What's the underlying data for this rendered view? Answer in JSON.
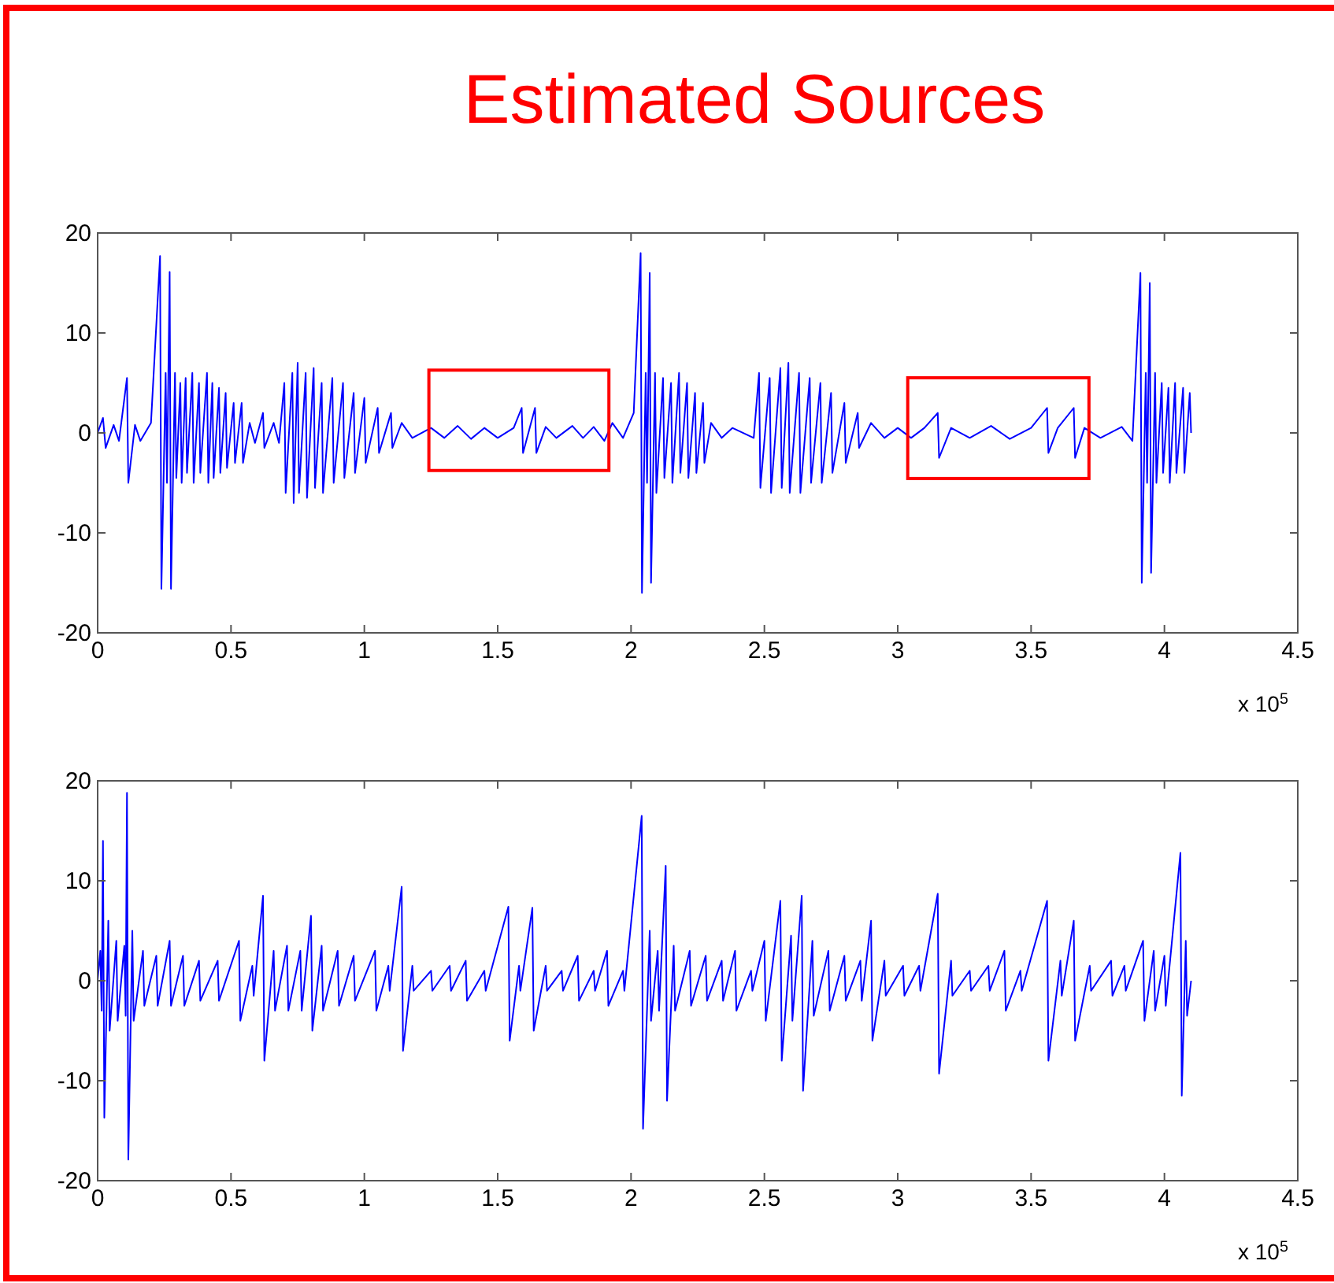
{
  "chart_data": [
    {
      "type": "line",
      "title": "Estimated Sources",
      "annotations": [
        "x 10$^{5}$"
      ],
      "xlim": [
        0,
        4.5
      ],
      "ylim": [
        -20,
        20
      ],
      "xticks": [
        0,
        0.5,
        1,
        1.5,
        2,
        2.5,
        3,
        3.5,
        4,
        4.5
      ],
      "yticks": [
        -20,
        -10,
        0,
        10,
        20
      ],
      "grid": false,
      "series": [
        {
          "color": "#0000ff",
          "x": [
            0,
            0.02,
            0.03,
            0.06,
            0.08,
            0.11,
            0.115,
            0.14,
            0.16,
            0.2,
            0.234,
            0.239,
            0.255,
            0.26,
            0.27,
            0.275,
            0.29,
            0.295,
            0.31,
            0.315,
            0.33,
            0.335,
            0.355,
            0.36,
            0.38,
            0.385,
            0.41,
            0.415,
            0.43,
            0.435,
            0.455,
            0.46,
            0.48,
            0.485,
            0.51,
            0.515,
            0.54,
            0.545,
            0.57,
            0.59,
            0.62,
            0.625,
            0.66,
            0.68,
            0.7,
            0.705,
            0.73,
            0.735,
            0.75,
            0.755,
            0.78,
            0.785,
            0.81,
            0.815,
            0.84,
            0.845,
            0.88,
            0.885,
            0.92,
            0.925,
            0.96,
            0.965,
            1,
            1.005,
            1.05,
            1.055,
            1.1,
            1.105,
            1.14,
            1.18,
            1.25,
            1.3,
            1.35,
            1.4,
            1.45,
            1.5,
            1.56,
            1.59,
            1.595,
            1.62,
            1.64,
            1.645,
            1.68,
            1.72,
            1.78,
            1.82,
            1.86,
            1.9,
            1.93,
            1.97,
            2.01,
            2.036,
            2.041,
            2.055,
            2.06,
            2.07,
            2.075,
            2.09,
            2.095,
            2.12,
            2.125,
            2.15,
            2.155,
            2.18,
            2.185,
            2.21,
            2.215,
            2.24,
            2.245,
            2.27,
            2.275,
            2.3,
            2.34,
            2.38,
            2.46,
            2.48,
            2.485,
            2.52,
            2.525,
            2.56,
            2.565,
            2.59,
            2.595,
            2.63,
            2.635,
            2.67,
            2.675,
            2.71,
            2.715,
            2.75,
            2.755,
            2.8,
            2.805,
            2.85,
            2.855,
            2.9,
            2.95,
            3,
            3.05,
            3.1,
            3.15,
            3.155,
            3.2,
            3.27,
            3.35,
            3.42,
            3.5,
            3.56,
            3.565,
            3.6,
            3.66,
            3.665,
            3.7,
            3.76,
            3.84,
            3.88,
            3.91,
            3.915,
            3.93,
            3.935,
            3.945,
            3.95,
            3.965,
            3.97,
            3.99,
            3.995,
            4.015,
            4.02,
            4.04,
            4.045,
            4.07,
            4.075,
            4.095,
            4.1
          ],
          "values": [
            0,
            1.5,
            -1.5,
            0.8,
            -0.8,
            5.5,
            -5,
            0.8,
            -0.8,
            1,
            17.7,
            -15.6,
            6,
            -5,
            16.1,
            -15.6,
            6,
            -4.5,
            5,
            -5,
            5.5,
            -4,
            6,
            -5,
            5,
            -4,
            6,
            -5,
            5,
            -4.5,
            4.5,
            -4,
            4,
            -3.5,
            3,
            -3,
            3,
            -3,
            1,
            -1,
            2,
            -1.5,
            1,
            -1,
            5,
            -6,
            6,
            -7,
            7,
            -6,
            6,
            -6.5,
            6.5,
            -5.5,
            5,
            -6,
            5.5,
            -5,
            5,
            -4.5,
            4,
            -4,
            3.5,
            -3,
            2.5,
            -2,
            2,
            -1.5,
            1,
            -0.5,
            0.5,
            -0.5,
            0.7,
            -0.6,
            0.5,
            -0.5,
            0.5,
            2.5,
            -2,
            0.5,
            2.5,
            -2,
            0.6,
            -0.5,
            0.7,
            -0.5,
            0.6,
            -0.8,
            1,
            -0.5,
            2,
            18,
            -16,
            6,
            -5,
            16,
            -15,
            6,
            -6,
            5.5,
            -4.5,
            5,
            -5,
            6,
            -4,
            5,
            -4.5,
            4,
            -4,
            3,
            -3,
            1,
            -0.5,
            0.5,
            -0.5,
            6,
            -5.5,
            5.5,
            -6,
            6.5,
            -5.5,
            7,
            -6,
            6,
            -6,
            5.5,
            -5,
            5,
            -5,
            4,
            -4,
            3,
            -3,
            2,
            -1.5,
            1,
            -0.5,
            0.5,
            -0.5,
            0.5,
            2,
            -2.5,
            0.5,
            -0.5,
            0.7,
            -0.6,
            0.5,
            2.5,
            -2,
            0.5,
            2.5,
            -2.5,
            0.5,
            -0.5,
            0.6,
            -0.8,
            16,
            -15,
            6,
            -5,
            15,
            -14,
            6,
            -5,
            5,
            -4,
            4.5,
            -5,
            5,
            -4,
            4.5,
            -4,
            4,
            0
          ]
        }
      ]
    },
    {
      "type": "line",
      "annotations": [
        "x 10$^{5}$"
      ],
      "xlim": [
        0,
        4.5
      ],
      "ylim": [
        -20,
        20
      ],
      "xticks": [
        0,
        0.5,
        1,
        1.5,
        2,
        2.5,
        3,
        3.5,
        4,
        4.5
      ],
      "yticks": [
        -20,
        -10,
        0,
        10,
        20
      ],
      "grid": false,
      "series": [
        {
          "color": "#0000ff",
          "x": [
            0,
            0.01,
            0.015,
            0.02,
            0.025,
            0.04,
            0.045,
            0.07,
            0.075,
            0.1,
            0.105,
            0.11,
            0.115,
            0.13,
            0.135,
            0.17,
            0.175,
            0.22,
            0.225,
            0.27,
            0.275,
            0.32,
            0.325,
            0.38,
            0.385,
            0.45,
            0.455,
            0.53,
            0.535,
            0.58,
            0.585,
            0.62,
            0.625,
            0.66,
            0.665,
            0.71,
            0.715,
            0.76,
            0.765,
            0.8,
            0.805,
            0.84,
            0.845,
            0.9,
            0.905,
            0.96,
            0.965,
            1.04,
            1.045,
            1.09,
            1.095,
            1.14,
            1.145,
            1.18,
            1.185,
            1.25,
            1.255,
            1.32,
            1.325,
            1.38,
            1.385,
            1.45,
            1.455,
            1.54,
            1.545,
            1.58,
            1.585,
            1.63,
            1.635,
            1.68,
            1.685,
            1.74,
            1.745,
            1.8,
            1.805,
            1.86,
            1.865,
            1.91,
            1.915,
            1.97,
            1.975,
            2.04,
            2.045,
            2.07,
            2.075,
            2.1,
            2.105,
            2.13,
            2.135,
            2.16,
            2.165,
            2.22,
            2.225,
            2.28,
            2.285,
            2.34,
            2.345,
            2.39,
            2.395,
            2.45,
            2.455,
            2.5,
            2.505,
            2.56,
            2.565,
            2.6,
            2.605,
            2.64,
            2.645,
            2.68,
            2.685,
            2.74,
            2.745,
            2.8,
            2.805,
            2.86,
            2.865,
            2.9,
            2.905,
            2.95,
            2.955,
            3.02,
            3.025,
            3.08,
            3.085,
            3.15,
            3.155,
            3.2,
            3.205,
            3.27,
            3.275,
            3.34,
            3.345,
            3.4,
            3.405,
            3.46,
            3.465,
            3.56,
            3.565,
            3.61,
            3.615,
            3.66,
            3.665,
            3.72,
            3.725,
            3.8,
            3.805,
            3.85,
            3.855,
            3.92,
            3.925,
            3.96,
            3.965,
            4,
            4.005,
            4.06,
            4.065,
            4.08,
            4.085,
            4.1
          ],
          "values": [
            0,
            3,
            -3,
            14,
            -13.7,
            6,
            -5,
            4,
            -4,
            3.5,
            -3.5,
            18.8,
            -17.9,
            5,
            -4,
            3,
            -2.5,
            2.5,
            -2.5,
            4,
            -2.5,
            2.5,
            -2.5,
            2,
            -2,
            2,
            -2,
            4,
            -4,
            1.5,
            -1.5,
            8.5,
            -8,
            3,
            -3,
            3.5,
            -3,
            3,
            -3,
            6.5,
            -5,
            3.5,
            -3,
            3,
            -2.5,
            2.5,
            -2,
            3,
            -3,
            1.5,
            -1,
            9.4,
            -7,
            1.5,
            -1,
            1,
            -1,
            1.5,
            -1,
            2,
            -2,
            1,
            -1,
            7.4,
            -6,
            1.5,
            -1,
            7.3,
            -5,
            1.5,
            -1,
            1,
            -1,
            2.5,
            -2,
            1,
            -1,
            3,
            -2.5,
            1,
            -1,
            16.5,
            -14.8,
            5,
            -4,
            3,
            -3,
            11.5,
            -12,
            3.5,
            -3,
            3,
            -2.5,
            2.5,
            -2,
            2,
            -2,
            3,
            -3,
            1,
            -1,
            4,
            -4,
            8,
            -8,
            4.5,
            -4,
            8.5,
            -11,
            4,
            -3.5,
            3,
            -3,
            2.5,
            -2,
            2,
            -2,
            6,
            -6,
            2,
            -1.5,
            1.5,
            -1.5,
            1.5,
            -1,
            8.7,
            -9.3,
            2,
            -1.5,
            1,
            -1,
            1.5,
            -1,
            3,
            -3,
            1,
            -1,
            8,
            -8,
            2,
            -1.5,
            6,
            -6,
            1.5,
            -1,
            2,
            -1.5,
            1.5,
            -1,
            4,
            -4,
            3,
            -3,
            2.5,
            -2.5,
            12.8,
            -11.5,
            4,
            -3.5,
            0
          ]
        }
      ]
    }
  ]
}
